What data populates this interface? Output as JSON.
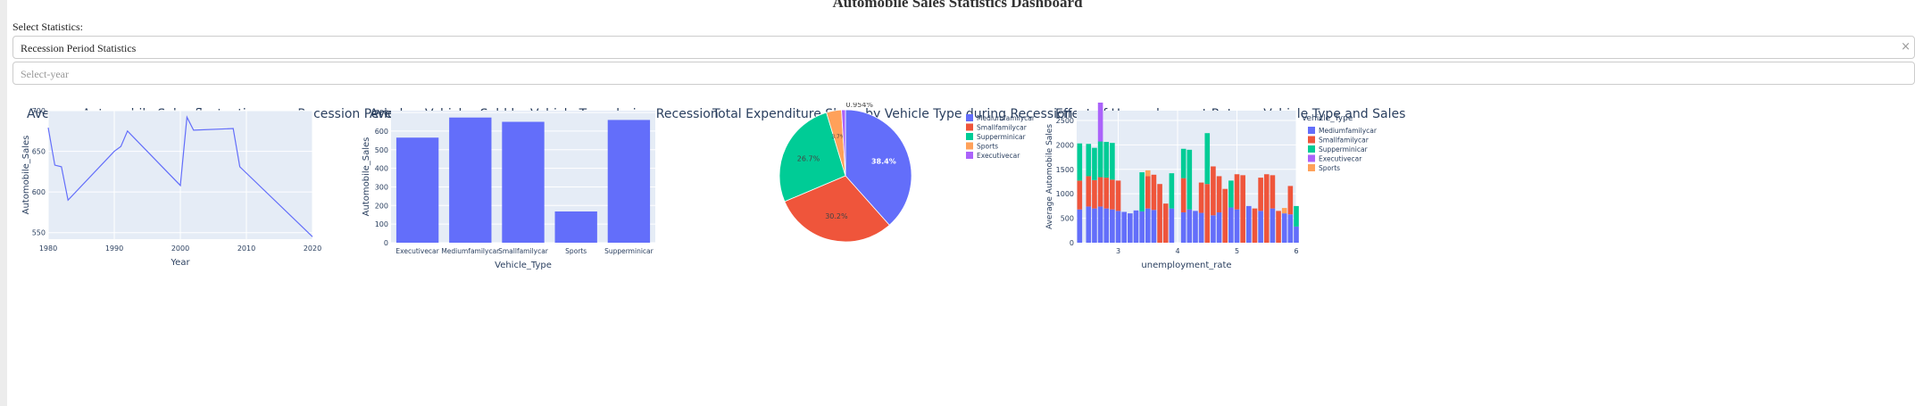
{
  "page": {
    "title": "Automobile Sales Statistics Dashboard",
    "select_label": "Select Statistics:",
    "stats_dropdown": {
      "value": "Recession Period Statistics",
      "clear": "×"
    },
    "year_dropdown": {
      "placeholder": "Select-year"
    }
  },
  "colors": {
    "Mediumfamilycar": "#636efa",
    "Smallfamilycar": "#ef553b",
    "Supperminicar": "#00cc96",
    "Executivecar": "#ab63fa",
    "Sports": "#ffa15a",
    "plot_bg": "#e5ecf6"
  },
  "chart_data": [
    {
      "type": "line",
      "title": "Average Automobile Sales fluctuation over Recession Period",
      "xlabel": "Year",
      "ylabel": "Automobile_Sales",
      "xlim": [
        1980,
        2020
      ],
      "ylim": [
        542,
        700
      ],
      "xticks": [
        "1980",
        "1990",
        "2000",
        "2010",
        "2020"
      ],
      "yticks": [
        "550",
        "600",
        "650",
        "700"
      ],
      "x": [
        1980,
        1981,
        1982,
        1983,
        1990,
        1991,
        1992,
        2000,
        2001,
        2002,
        2008,
        2009,
        2020
      ],
      "y": [
        679,
        633,
        631,
        590,
        650,
        656,
        675,
        608,
        692,
        676,
        678,
        631,
        545
      ]
    },
    {
      "type": "bar",
      "title": "Average Vehicles Sold by Vehicle Type during Recession",
      "xlabel": "Vehicle_Type",
      "ylabel": "Automobile_Sales",
      "ylim": [
        0,
        710
      ],
      "yticks": [
        "0",
        "100",
        "200",
        "300",
        "400",
        "500",
        "600",
        "700"
      ],
      "categories": [
        "Executivecar",
        "Mediumfamilycar",
        "Smallfamilycar",
        "Sports",
        "Supperminicar"
      ],
      "values": [
        565,
        673,
        650,
        168,
        660
      ]
    },
    {
      "type": "pie",
      "title": "Total Expenditure Share by Vehicle Type during Recession",
      "labels": [
        "Mediumfamilycar",
        "Smallfamilycar",
        "Supperminicar",
        "Sports",
        "Executivecar"
      ],
      "values": [
        38.4,
        30.2,
        26.7,
        3.7,
        0.954
      ],
      "slice_labels": [
        "38.4%",
        "30.2%",
        "26.7%",
        "3.7%",
        "0.954%"
      ],
      "legend": "right"
    },
    {
      "type": "bar",
      "title": "Effect of Unemployment Rate on Vehicle Type and Sales",
      "xlabel": "unemployment_rate",
      "ylabel": "Average Automobile Sales",
      "legend_title": "Vehicle_Type",
      "legend_items": [
        "Mediumfamilycar",
        "Smallfamilycar",
        "Supperminicar",
        "Executivecar",
        "Sports"
      ],
      "ylim": [
        0,
        2700
      ],
      "xlim": [
        2.3,
        6.0
      ],
      "xticks": [
        "3",
        "4",
        "5",
        "6"
      ],
      "yticks": [
        "0",
        "500",
        "1000",
        "1500",
        "2000",
        "2500"
      ],
      "x": [
        2.35,
        2.5,
        2.6,
        2.7,
        2.8,
        2.9,
        3.0,
        3.1,
        3.2,
        3.3,
        3.4,
        3.5,
        3.6,
        3.7,
        3.8,
        3.9,
        4.1,
        4.2,
        4.3,
        4.4,
        4.5,
        4.6,
        4.7,
        4.8,
        4.9,
        5.0,
        5.1,
        5.2,
        5.3,
        5.4,
        5.5,
        5.6,
        5.7,
        5.8,
        5.9,
        6.0
      ],
      "series": [
        {
          "name": "Mediumfamilycar",
          "values": [
            680,
            740,
            700,
            740,
            700,
            680,
            650,
            630,
            600,
            660,
            640,
            700,
            670,
            0,
            0,
            700,
            620,
            680,
            650,
            610,
            0,
            560,
            620,
            0,
            720,
            680,
            0,
            750,
            0,
            650,
            0,
            700,
            0,
            600,
            580,
            330
          ]
        },
        {
          "name": "Smallfamilycar",
          "values": [
            590,
            620,
            580,
            600,
            630,
            610,
            620,
            0,
            0,
            0,
            0,
            660,
            720,
            1200,
            800,
            0,
            700,
            0,
            0,
            620,
            1200,
            1000,
            740,
            1100,
            0,
            720,
            1380,
            0,
            700,
            680,
            1400,
            680,
            650,
            0,
            580,
            0
          ]
        },
        {
          "name": "Supperminicar",
          "values": [
            760,
            660,
            660,
            730,
            730,
            750,
            0,
            0,
            0,
            0,
            800,
            0,
            0,
            0,
            0,
            720,
            600,
            1220,
            0,
            0,
            1040,
            0,
            0,
            0,
            550,
            0,
            0,
            0,
            0,
            0,
            0,
            0,
            0,
            0,
            0,
            420
          ]
        },
        {
          "name": "Executivecar",
          "values": [
            0,
            0,
            0,
            1230,
            0,
            0,
            0,
            0,
            0,
            0,
            0,
            0,
            0,
            0,
            0,
            0,
            0,
            0,
            0,
            0,
            0,
            0,
            0,
            0,
            0,
            0,
            0,
            0,
            0,
            0,
            0,
            0,
            0,
            0,
            0,
            0
          ]
        },
        {
          "name": "Sports",
          "values": [
            0,
            0,
            0,
            0,
            0,
            0,
            0,
            0,
            0,
            0,
            0,
            120,
            0,
            0,
            0,
            0,
            0,
            0,
            0,
            0,
            0,
            0,
            0,
            0,
            0,
            0,
            0,
            0,
            0,
            0,
            0,
            0,
            0,
            110,
            0,
            0
          ]
        }
      ]
    }
  ]
}
